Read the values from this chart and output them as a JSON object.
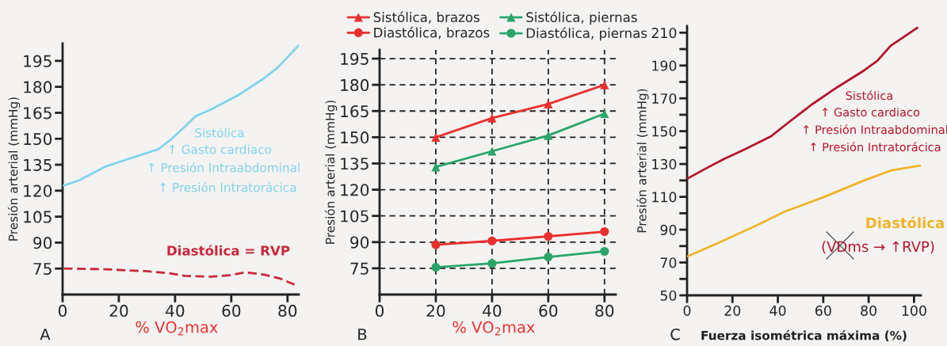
{
  "chart_data": [
    {
      "type": "line",
      "ylabel": "Presión arterial (mmHg)",
      "xlabel": "% VO$_{2}$max",
      "xlim": [
        0,
        84
      ],
      "ylim": [
        60,
        205
      ],
      "xticks": [
        0,
        20,
        40,
        60,
        80
      ],
      "yticks": [
        75,
        90,
        105,
        120,
        135,
        150,
        165,
        180,
        195
      ],
      "grid": false,
      "legend": false,
      "marker": "none",
      "series": [
        {
          "color": "#7fd3ec",
          "line_style": "solid",
          "x": [
            0.4,
            5.9,
            15.3,
            24.7,
            34.1,
            38.8,
            43.5,
            47.3,
            52.9,
            62.3,
            71.7,
            76.4,
            81.1,
            84
          ],
          "values": [
            123,
            126,
            134,
            139,
            144,
            150,
            157,
            163,
            167,
            175,
            185,
            191,
            199,
            204
          ]
        },
        {
          "color": "#c8283a",
          "line_style": "dashed",
          "x": [
            0.4,
            15.3,
            29.4,
            37.9,
            43.5,
            52.9,
            59.5,
            65.1,
            71.7,
            77.4,
            83
          ],
          "values": [
            75,
            74.6,
            73.5,
            72.3,
            70.8,
            70.3,
            71.2,
            72.8,
            71.5,
            69.2,
            65.4
          ]
        }
      ],
      "annotations": [
        "Sistólica",
        "↑ Gasto cardiaco",
        "↑ Presión Intraabdominal",
        "↑ Presión Intratorácica",
        "Diastólica = RVP",
        "A"
      ]
    },
    {
      "type": "line",
      "ylabel": "Presión arterial (mmHg)",
      "xlabel": "% VO$_{2}$max",
      "xlim": [
        0,
        84
      ],
      "ylim": [
        60,
        200
      ],
      "xticks": [
        0,
        20,
        40,
        60,
        80
      ],
      "yticks": [
        75,
        90,
        105,
        120,
        135,
        150,
        165,
        180,
        195
      ],
      "grid": true,
      "legend": "top",
      "series": [
        {
          "name": "Sistólica, brazos",
          "color": "#e8312f",
          "marker": "triangle",
          "x": [
            20,
            40,
            60,
            80
          ],
          "values": [
            150,
            161,
            169,
            180
          ]
        },
        {
          "name": "Diastólica, brazos",
          "color": "#e8312f",
          "marker": "circle",
          "x": [
            20,
            40,
            60,
            80
          ],
          "values": [
            88.5,
            90.7,
            93.3,
            96
          ]
        },
        {
          "name": "Sistólica, piernas",
          "color": "#2aa56a",
          "marker": "triangle",
          "x": [
            20,
            40,
            60,
            80
          ],
          "values": [
            133,
            142,
            151,
            163.5
          ]
        },
        {
          "name": "Diastólica, piernas",
          "color": "#2aa56a",
          "marker": "circle",
          "x": [
            20,
            40,
            60,
            80
          ],
          "values": [
            75.6,
            77.8,
            81.5,
            84.7
          ]
        }
      ],
      "annotations": [
        "B"
      ]
    },
    {
      "type": "line",
      "ylabel": "Presión arterial (mmHg)",
      "xlabel": "Fuerza isométrica máxima (%)",
      "xlim": [
        0,
        103
      ],
      "ylim": [
        50,
        214
      ],
      "xticks": [
        0,
        20,
        40,
        60,
        80,
        100
      ],
      "yticks": [
        50,
        {
          "value": 60,
          "label": null
        },
        70,
        {
          "value": 80,
          "label": null
        },
        90,
        {
          "value": 100,
          "label": null
        },
        110,
        {
          "value": 120,
          "label": null
        },
        130,
        {
          "value": 140,
          "label": null
        },
        150,
        {
          "value": 160,
          "label": null
        },
        170,
        {
          "value": 180,
          "label": null
        },
        190,
        {
          "value": 200,
          "label": null
        },
        210
      ],
      "grid": false,
      "legend": false,
      "marker": "none",
      "series": [
        {
          "color": "#b5152b",
          "x": [
            0,
            7.9,
            16.1,
            25.5,
            37.1,
            45.3,
            54.7,
            66.4,
            78,
            83.9,
            89.7,
            101.4
          ],
          "values": [
            121,
            127,
            133,
            139,
            147,
            156,
            166,
            177,
            187,
            193,
            202,
            213
          ]
        },
        {
          "color": "#f0b429",
          "x": [
            0,
            13.8,
            31.3,
            43,
            60.5,
            78,
            89.7,
            102.6
          ],
          "values": [
            73.6,
            82,
            93,
            101,
            110,
            120,
            126,
            129
          ]
        }
      ],
      "annotations": [
        "Sistólica",
        "↑ Gasto cardiaco",
        "↑ Presión Intraabdominal",
        "↑ Presión Intratorácica",
        "Diastólica",
        "(VDms → ↑RVP)",
        "C"
      ]
    }
  ]
}
